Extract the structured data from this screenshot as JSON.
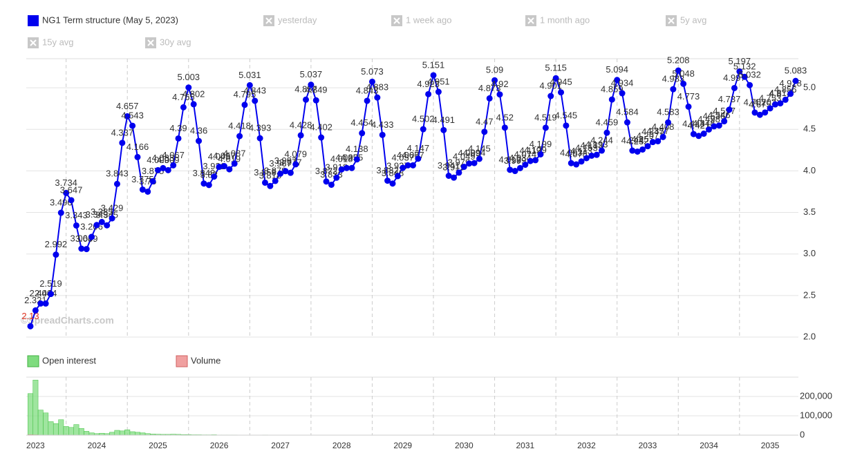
{
  "chart_data": [
    {
      "type": "line",
      "series": [
        {
          "name": "NG1 Term structure (May 5, 2023)",
          "color": "#0000ee",
          "values": [
            2.13,
            2.321,
            2.404,
            2.404,
            2.519,
            2.992,
            3.496,
            3.734,
            3.647,
            3.343,
            3.064,
            3.059,
            3.206,
            3.349,
            3.385,
            3.345,
            3.429,
            3.843,
            4.337,
            4.657,
            4.543,
            4.166,
            3.775,
            3.75,
            3.875,
            4.009,
            4.033,
            4.009,
            4.067,
            4.39,
            4.765,
            5.003,
            4.802,
            4.36,
            3.848,
            3.83,
            3.931,
            4.049,
            4.057,
            4.019,
            4.087,
            4.418,
            4.795,
            5.031,
            4.843,
            4.393,
            3.858,
            3.818,
            3.879,
            3.967,
            3.997,
            3.977,
            4.079,
            4.428,
            4.857,
            5.037,
            4.849,
            4.402,
            3.872,
            3.833,
            3.918,
            4.018,
            4.035,
            4.035,
            4.138,
            4.454,
            4.843,
            5.073,
            4.883,
            4.433,
            3.882,
            3.848,
            3.937,
            4.037,
            4.067,
            4.067,
            4.147,
            4.502,
            4.923,
            5.151,
            4.951,
            4.491,
            3.941,
            3.919,
            3.979,
            4.049,
            4.089,
            4.094,
            4.145,
            4.47,
            4.873,
            5.09,
            4.92,
            4.52,
            4.013,
            3.999,
            4.034,
            4.074,
            4.119,
            4.129,
            4.199,
            4.519,
            4.901,
            5.115,
            4.945,
            4.545,
            4.093,
            4.078,
            4.113,
            4.153,
            4.183,
            4.193,
            4.244,
            4.459,
            4.859,
            5.094,
            4.934,
            4.584,
            4.244,
            4.232,
            4.257,
            4.297,
            4.347,
            4.357,
            4.408,
            4.583,
            4.983,
            5.208,
            5.048,
            4.773,
            4.443,
            4.421,
            4.448,
            4.498,
            4.536,
            4.546,
            4.597,
            4.737,
            4.997,
            5.197,
            5.132,
            5.032,
            4.702,
            4.675,
            4.703,
            4.753,
            4.8,
            4.813,
            4.856,
            4.928,
            5.083
          ]
        }
      ],
      "inactive_series": [
        "yesterday",
        "1 week ago",
        "1 month ago",
        "5y avg",
        "15y avg",
        "30y avg"
      ],
      "min_label_color": "#e0301e",
      "ylim": [
        2.0,
        5.35
      ],
      "yticks": [
        {
          "value": 2.0,
          "label": "2.0"
        },
        {
          "value": 2.5,
          "label": "2.5"
        },
        {
          "value": 3.0,
          "label": "3.0"
        },
        {
          "value": 3.5,
          "label": "3.5"
        },
        {
          "value": 4.0,
          "label": "4.0"
        },
        {
          "value": 4.5,
          "label": "4.5"
        },
        {
          "value": 5.0,
          "label": "5.0"
        }
      ],
      "grid": true,
      "watermark": "©SpreadCharts.com"
    },
    {
      "type": "bar",
      "series": [
        {
          "name": "Open interest",
          "color": "#7fdc7f",
          "values": [
            215000,
            285000,
            130000,
            115000,
            70000,
            60000,
            80000,
            45000,
            40000,
            55000,
            35000,
            20000,
            12000,
            8000,
            10000,
            8000,
            15000,
            25000,
            22000,
            28000,
            18000,
            15000,
            12000,
            8000,
            6000,
            5000,
            4000,
            4000,
            5000,
            4000,
            3000,
            3000,
            2000,
            2000,
            1500,
            1500,
            2000,
            1000,
            1000,
            1000,
            1000,
            500,
            500,
            500,
            500,
            500,
            1000,
            500,
            500,
            500,
            500,
            500,
            500,
            500,
            0,
            0,
            0,
            0,
            0,
            0,
            0,
            0,
            0,
            0,
            0,
            0,
            0,
            0,
            0,
            0,
            0,
            0,
            0,
            0,
            0,
            0,
            0,
            0,
            0,
            0,
            0,
            0,
            0,
            0,
            0,
            0,
            0,
            0,
            0,
            0,
            0,
            0,
            0,
            0,
            0,
            0,
            0,
            0,
            0,
            0,
            0,
            0,
            0,
            0,
            0,
            0,
            0,
            0,
            0,
            0,
            0,
            0,
            0,
            0,
            0,
            0,
            0,
            0,
            0,
            0,
            0,
            0,
            0,
            0,
            0,
            0,
            0,
            0,
            0,
            0,
            0,
            0,
            0,
            0,
            0,
            0,
            0,
            0,
            0,
            0,
            0,
            0,
            0,
            0,
            0,
            0,
            0,
            0,
            0,
            0,
            0
          ]
        },
        {
          "name": "Volume",
          "color": "#f0a0a0",
          "values": [
            2000,
            1500,
            800,
            600,
            400,
            300,
            300,
            200,
            200,
            200,
            100,
            100,
            100,
            100,
            100,
            100,
            100,
            100,
            100,
            100,
            0,
            0,
            0,
            0,
            0,
            0,
            0,
            0,
            0,
            0,
            0,
            0,
            0,
            0,
            0,
            0,
            0,
            0,
            0,
            0,
            0,
            0,
            0,
            0,
            0,
            0,
            0,
            0,
            0,
            0,
            0,
            0,
            0,
            0,
            0,
            0,
            0,
            0,
            0,
            0,
            0,
            0,
            0,
            0,
            0,
            0,
            0,
            0,
            0,
            0,
            0,
            0,
            0,
            0,
            0,
            0,
            0,
            0,
            0,
            0,
            0,
            0,
            0,
            0,
            0,
            0,
            0,
            0,
            0,
            0,
            0,
            0,
            0,
            0,
            0,
            0,
            0,
            0,
            0,
            0,
            0,
            0,
            0,
            0,
            0,
            0,
            0,
            0,
            0,
            0,
            0,
            0,
            0,
            0,
            0,
            0,
            0,
            0,
            0,
            0,
            0,
            0,
            0,
            0,
            0,
            0,
            0,
            0,
            0,
            0,
            0,
            0,
            0,
            0,
            0,
            0,
            0,
            0,
            0,
            0,
            0,
            0,
            0,
            0,
            0,
            0,
            0,
            0,
            0,
            0,
            0
          ]
        }
      ],
      "ylim": [
        0,
        300000
      ],
      "yticks": [
        0,
        {
          "value": 100000,
          "label": "100,000"
        },
        {
          "value": 200000,
          "label": "200,000"
        }
      ],
      "grid": true,
      "year_labels": [
        2023,
        2024,
        2025,
        2026,
        2027,
        2028,
        2029,
        2030,
        2031,
        2032,
        2033,
        2034,
        2035
      ]
    }
  ]
}
